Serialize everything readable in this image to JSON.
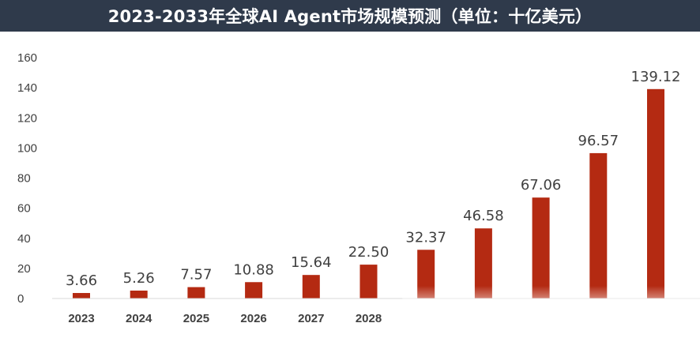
{
  "title": "2023-2033年全球AI Agent市场规模预测（单位：十亿美元）",
  "colors": {
    "title_bg": "#2f3a4b",
    "bar": "#b42a12",
    "text": "#404040",
    "axis": "#d9d9d9"
  },
  "chart_data": {
    "type": "bar",
    "title": "2023-2033年全球AI Agent市场规模预测（单位：十亿美元）",
    "categories": [
      "2023",
      "2024",
      "2025",
      "2026",
      "2027",
      "2028",
      "",
      "",
      "",
      "",
      ""
    ],
    "values": [
      3.66,
      5.26,
      7.57,
      10.88,
      15.64,
      22.5,
      32.37,
      46.58,
      67.06,
      96.57,
      139.12
    ],
    "data_labels": [
      "3.66",
      "5.26",
      "7.57",
      "10.88",
      "15.64",
      "22.50",
      "32.37",
      "46.58",
      "67.06",
      "96.57",
      "139.12"
    ],
    "yticks": [
      0,
      20,
      40,
      60,
      80,
      100,
      120,
      140,
      160
    ],
    "ylim": [
      0,
      160
    ],
    "xlabel": "",
    "ylabel": "",
    "grid": false,
    "legend": "none"
  }
}
